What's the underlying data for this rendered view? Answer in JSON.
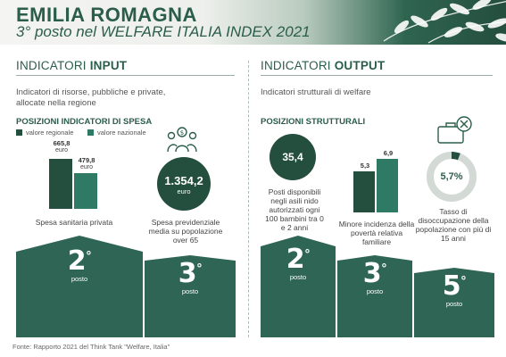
{
  "header": {
    "title": "EMILIA ROMAGNA",
    "subtitle": "3° posto nel WELFARE ITALIA INDEX 2021"
  },
  "input": {
    "title_prefix": "INDICATORI ",
    "title_bold": "INPUT",
    "description": "Indicatori di risorse, pubbliche e private, allocate nella regione",
    "subtitle": "POSIZIONI INDICATORI DI SPESA",
    "legend": {
      "regional": "valore regionale",
      "national": "valore nazionale"
    },
    "colors": {
      "regional": "#244e3e",
      "national": "#2e7a64"
    },
    "bars": {
      "regional_value": "665,8",
      "regional_unit": "euro",
      "regional_num": 665.8,
      "national_value": "479,8",
      "national_unit": "euro",
      "national_num": 479.8
    },
    "spesa_sanitaria": {
      "label": "Spesa sanitaria privata",
      "rank": "2",
      "rank_suffix": "°",
      "rank_word": "posto"
    },
    "spesa_previdenziale": {
      "value": "1.354,2",
      "unit": "euro",
      "label": "Spesa previdenziale media su popolazione over 65",
      "rank": "3",
      "rank_suffix": "°",
      "rank_word": "posto"
    }
  },
  "output": {
    "title_prefix": "INDICATORI ",
    "title_bold": "OUTPUT",
    "description": "Indicatori strutturali di welfare",
    "subtitle": "POSIZIONI STRUTTURALI",
    "asili": {
      "value": "35,4",
      "label": "Posti disponibili negli asili nido autorizzati ogni 100 bambini tra 0 e 2 anni",
      "rank": "2",
      "rank_suffix": "°",
      "rank_word": "posto"
    },
    "poverta": {
      "regional_value": "5,3",
      "national_value": "6,9",
      "regional_num": 5.3,
      "national_num": 6.9,
      "label": "Minore incidenza della povertà relativa familiare",
      "rank": "3",
      "rank_suffix": "°",
      "rank_word": "posto"
    },
    "disoccupazione": {
      "value": "5,7%",
      "fraction": 0.057,
      "label": "Tasso di disoccupazione della popolazione con più di 15 anni",
      "rank": "5",
      "rank_suffix": "°",
      "rank_word": "posto"
    }
  },
  "footer": "Fonte: Rapporto 2021 del Think Tank \"Welfare, Italia\""
}
